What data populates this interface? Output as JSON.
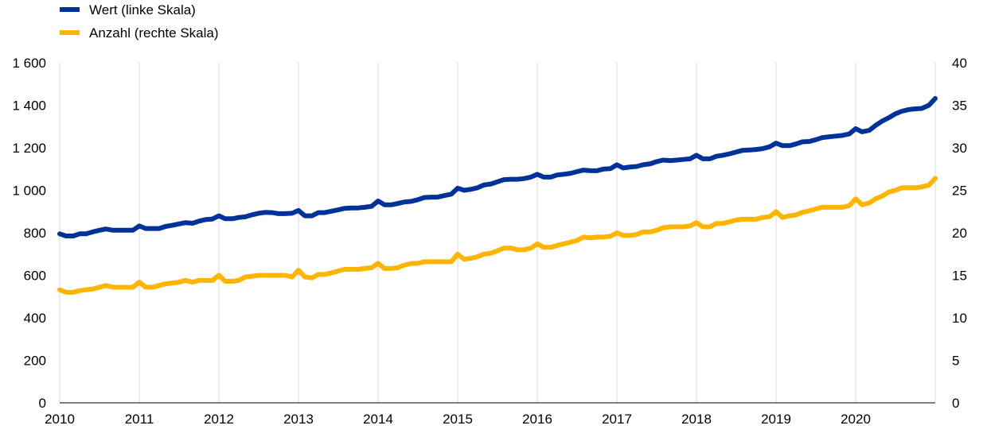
{
  "chart_data": {
    "type": "line",
    "title": "",
    "xlabel": "",
    "ylabel": "",
    "legend_position": "top-left",
    "grid": "vertical",
    "x_ticks": [
      "2010",
      "2011",
      "2012",
      "2013",
      "2014",
      "2015",
      "2016",
      "2017",
      "2018",
      "2019",
      "2020"
    ],
    "x_range": [
      2010,
      2021
    ],
    "y_left": {
      "range": [
        0,
        1600
      ],
      "ticks": [
        "0",
        "200",
        "400",
        "600",
        "800",
        "1 000",
        "1 200",
        "1 400",
        "1 600"
      ]
    },
    "y_right": {
      "range": [
        0,
        40
      ],
      "ticks": [
        "0",
        "5",
        "10",
        "15",
        "20",
        "25",
        "30",
        "35",
        "40"
      ]
    },
    "series": [
      {
        "name": "Wert (linke Skala)",
        "axis": "left",
        "color": "#003299",
        "points": [
          [
            2010.0,
            795
          ],
          [
            2010.08,
            785
          ],
          [
            2010.17,
            785
          ],
          [
            2010.25,
            795
          ],
          [
            2010.33,
            795
          ],
          [
            2010.42,
            805
          ],
          [
            2010.5,
            812
          ],
          [
            2010.58,
            818
          ],
          [
            2010.67,
            812
          ],
          [
            2010.75,
            812
          ],
          [
            2010.83,
            812
          ],
          [
            2010.92,
            812
          ],
          [
            2011.0,
            832
          ],
          [
            2011.08,
            820
          ],
          [
            2011.17,
            820
          ],
          [
            2011.25,
            820
          ],
          [
            2011.33,
            830
          ],
          [
            2011.42,
            836
          ],
          [
            2011.5,
            842
          ],
          [
            2011.58,
            848
          ],
          [
            2011.67,
            845
          ],
          [
            2011.75,
            855
          ],
          [
            2011.83,
            862
          ],
          [
            2011.92,
            865
          ],
          [
            2012.0,
            880
          ],
          [
            2012.08,
            866
          ],
          [
            2012.17,
            866
          ],
          [
            2012.25,
            872
          ],
          [
            2012.33,
            875
          ],
          [
            2012.42,
            885
          ],
          [
            2012.5,
            892
          ],
          [
            2012.58,
            896
          ],
          [
            2012.67,
            895
          ],
          [
            2012.75,
            890
          ],
          [
            2012.83,
            890
          ],
          [
            2012.92,
            892
          ],
          [
            2013.0,
            905
          ],
          [
            2013.08,
            880
          ],
          [
            2013.17,
            880
          ],
          [
            2013.25,
            895
          ],
          [
            2013.33,
            895
          ],
          [
            2013.42,
            902
          ],
          [
            2013.5,
            908
          ],
          [
            2013.58,
            915
          ],
          [
            2013.67,
            917
          ],
          [
            2013.75,
            917
          ],
          [
            2013.83,
            920
          ],
          [
            2013.92,
            925
          ],
          [
            2014.0,
            950
          ],
          [
            2014.08,
            932
          ],
          [
            2014.17,
            932
          ],
          [
            2014.25,
            938
          ],
          [
            2014.33,
            945
          ],
          [
            2014.42,
            948
          ],
          [
            2014.5,
            956
          ],
          [
            2014.58,
            966
          ],
          [
            2014.67,
            968
          ],
          [
            2014.75,
            968
          ],
          [
            2014.83,
            975
          ],
          [
            2014.92,
            982
          ],
          [
            2015.0,
            1010
          ],
          [
            2015.08,
            1000
          ],
          [
            2015.17,
            1005
          ],
          [
            2015.25,
            1012
          ],
          [
            2015.33,
            1025
          ],
          [
            2015.42,
            1030
          ],
          [
            2015.5,
            1040
          ],
          [
            2015.58,
            1050
          ],
          [
            2015.67,
            1052
          ],
          [
            2015.75,
            1052
          ],
          [
            2015.83,
            1055
          ],
          [
            2015.92,
            1062
          ],
          [
            2016.0,
            1075
          ],
          [
            2016.08,
            1062
          ],
          [
            2016.17,
            1062
          ],
          [
            2016.25,
            1072
          ],
          [
            2016.33,
            1075
          ],
          [
            2016.42,
            1080
          ],
          [
            2016.5,
            1088
          ],
          [
            2016.58,
            1095
          ],
          [
            2016.67,
            1092
          ],
          [
            2016.75,
            1092
          ],
          [
            2016.83,
            1100
          ],
          [
            2016.92,
            1102
          ],
          [
            2017.0,
            1120
          ],
          [
            2017.08,
            1105
          ],
          [
            2017.17,
            1110
          ],
          [
            2017.25,
            1112
          ],
          [
            2017.33,
            1120
          ],
          [
            2017.42,
            1125
          ],
          [
            2017.5,
            1135
          ],
          [
            2017.58,
            1142
          ],
          [
            2017.67,
            1140
          ],
          [
            2017.75,
            1142
          ],
          [
            2017.83,
            1145
          ],
          [
            2017.92,
            1148
          ],
          [
            2018.0,
            1165
          ],
          [
            2018.08,
            1148
          ],
          [
            2018.17,
            1148
          ],
          [
            2018.25,
            1160
          ],
          [
            2018.33,
            1165
          ],
          [
            2018.42,
            1172
          ],
          [
            2018.5,
            1180
          ],
          [
            2018.58,
            1188
          ],
          [
            2018.67,
            1190
          ],
          [
            2018.75,
            1192
          ],
          [
            2018.83,
            1196
          ],
          [
            2018.92,
            1205
          ],
          [
            2019.0,
            1222
          ],
          [
            2019.08,
            1210
          ],
          [
            2019.17,
            1210
          ],
          [
            2019.25,
            1218
          ],
          [
            2019.33,
            1228
          ],
          [
            2019.42,
            1230
          ],
          [
            2019.5,
            1238
          ],
          [
            2019.58,
            1248
          ],
          [
            2019.67,
            1252
          ],
          [
            2019.75,
            1255
          ],
          [
            2019.83,
            1258
          ],
          [
            2019.92,
            1265
          ],
          [
            2020.0,
            1290
          ],
          [
            2020.08,
            1275
          ],
          [
            2020.17,
            1282
          ],
          [
            2020.25,
            1305
          ],
          [
            2020.33,
            1325
          ],
          [
            2020.42,
            1342
          ],
          [
            2020.5,
            1360
          ],
          [
            2020.58,
            1372
          ],
          [
            2020.67,
            1380
          ],
          [
            2020.75,
            1383
          ],
          [
            2020.83,
            1385
          ],
          [
            2020.92,
            1400
          ],
          [
            2021.0,
            1432
          ]
        ]
      },
      {
        "name": "Anzahl (rechte Skala)",
        "axis": "right",
        "color": "#FFB400",
        "points": [
          [
            2010.0,
            13.3
          ],
          [
            2010.08,
            13.0
          ],
          [
            2010.17,
            13.0
          ],
          [
            2010.25,
            13.2
          ],
          [
            2010.33,
            13.3
          ],
          [
            2010.42,
            13.4
          ],
          [
            2010.5,
            13.6
          ],
          [
            2010.58,
            13.8
          ],
          [
            2010.67,
            13.6
          ],
          [
            2010.75,
            13.6
          ],
          [
            2010.83,
            13.6
          ],
          [
            2010.92,
            13.6
          ],
          [
            2011.0,
            14.2
          ],
          [
            2011.08,
            13.6
          ],
          [
            2011.17,
            13.6
          ],
          [
            2011.25,
            13.8
          ],
          [
            2011.33,
            14.0
          ],
          [
            2011.42,
            14.1
          ],
          [
            2011.5,
            14.2
          ],
          [
            2011.58,
            14.4
          ],
          [
            2011.67,
            14.2
          ],
          [
            2011.75,
            14.4
          ],
          [
            2011.83,
            14.4
          ],
          [
            2011.92,
            14.4
          ],
          [
            2012.0,
            15.0
          ],
          [
            2012.08,
            14.3
          ],
          [
            2012.17,
            14.3
          ],
          [
            2012.25,
            14.4
          ],
          [
            2012.33,
            14.8
          ],
          [
            2012.42,
            14.9
          ],
          [
            2012.5,
            15.0
          ],
          [
            2012.58,
            15.0
          ],
          [
            2012.67,
            15.0
          ],
          [
            2012.75,
            15.0
          ],
          [
            2012.83,
            15.0
          ],
          [
            2012.92,
            14.8
          ],
          [
            2013.0,
            15.6
          ],
          [
            2013.08,
            14.8
          ],
          [
            2013.17,
            14.7
          ],
          [
            2013.25,
            15.1
          ],
          [
            2013.33,
            15.1
          ],
          [
            2013.42,
            15.3
          ],
          [
            2013.5,
            15.5
          ],
          [
            2013.58,
            15.7
          ],
          [
            2013.67,
            15.7
          ],
          [
            2013.75,
            15.7
          ],
          [
            2013.83,
            15.8
          ],
          [
            2013.92,
            15.9
          ],
          [
            2014.0,
            16.4
          ],
          [
            2014.08,
            15.8
          ],
          [
            2014.17,
            15.8
          ],
          [
            2014.25,
            15.9
          ],
          [
            2014.33,
            16.2
          ],
          [
            2014.42,
            16.4
          ],
          [
            2014.5,
            16.4
          ],
          [
            2014.58,
            16.6
          ],
          [
            2014.67,
            16.6
          ],
          [
            2014.75,
            16.6
          ],
          [
            2014.83,
            16.6
          ],
          [
            2014.92,
            16.6
          ],
          [
            2015.0,
            17.5
          ],
          [
            2015.08,
            16.9
          ],
          [
            2015.17,
            17.0
          ],
          [
            2015.25,
            17.2
          ],
          [
            2015.33,
            17.5
          ],
          [
            2015.42,
            17.6
          ],
          [
            2015.5,
            17.9
          ],
          [
            2015.58,
            18.2
          ],
          [
            2015.67,
            18.2
          ],
          [
            2015.75,
            18.0
          ],
          [
            2015.83,
            18.0
          ],
          [
            2015.92,
            18.2
          ],
          [
            2016.0,
            18.7
          ],
          [
            2016.08,
            18.3
          ],
          [
            2016.17,
            18.3
          ],
          [
            2016.25,
            18.5
          ],
          [
            2016.33,
            18.7
          ],
          [
            2016.42,
            18.9
          ],
          [
            2016.5,
            19.1
          ],
          [
            2016.58,
            19.5
          ],
          [
            2016.67,
            19.4
          ],
          [
            2016.75,
            19.5
          ],
          [
            2016.83,
            19.5
          ],
          [
            2016.92,
            19.6
          ],
          [
            2017.0,
            20.0
          ],
          [
            2017.08,
            19.7
          ],
          [
            2017.17,
            19.7
          ],
          [
            2017.25,
            19.8
          ],
          [
            2017.33,
            20.1
          ],
          [
            2017.42,
            20.1
          ],
          [
            2017.5,
            20.3
          ],
          [
            2017.58,
            20.6
          ],
          [
            2017.67,
            20.7
          ],
          [
            2017.75,
            20.7
          ],
          [
            2017.83,
            20.7
          ],
          [
            2017.92,
            20.8
          ],
          [
            2018.0,
            21.2
          ],
          [
            2018.08,
            20.7
          ],
          [
            2018.17,
            20.7
          ],
          [
            2018.25,
            21.1
          ],
          [
            2018.33,
            21.1
          ],
          [
            2018.42,
            21.3
          ],
          [
            2018.5,
            21.5
          ],
          [
            2018.58,
            21.6
          ],
          [
            2018.67,
            21.6
          ],
          [
            2018.75,
            21.6
          ],
          [
            2018.83,
            21.8
          ],
          [
            2018.92,
            21.9
          ],
          [
            2019.0,
            22.5
          ],
          [
            2019.08,
            21.8
          ],
          [
            2019.17,
            22.0
          ],
          [
            2019.25,
            22.1
          ],
          [
            2019.33,
            22.4
          ],
          [
            2019.42,
            22.6
          ],
          [
            2019.5,
            22.8
          ],
          [
            2019.58,
            23.0
          ],
          [
            2019.67,
            23.0
          ],
          [
            2019.75,
            23.0
          ],
          [
            2019.83,
            23.0
          ],
          [
            2019.92,
            23.2
          ],
          [
            2020.0,
            24.0
          ],
          [
            2020.08,
            23.3
          ],
          [
            2020.17,
            23.5
          ],
          [
            2020.25,
            24.0
          ],
          [
            2020.33,
            24.3
          ],
          [
            2020.42,
            24.8
          ],
          [
            2020.5,
            25.0
          ],
          [
            2020.58,
            25.3
          ],
          [
            2020.67,
            25.3
          ],
          [
            2020.75,
            25.3
          ],
          [
            2020.83,
            25.4
          ],
          [
            2020.92,
            25.6
          ],
          [
            2021.0,
            26.4
          ]
        ]
      }
    ]
  }
}
